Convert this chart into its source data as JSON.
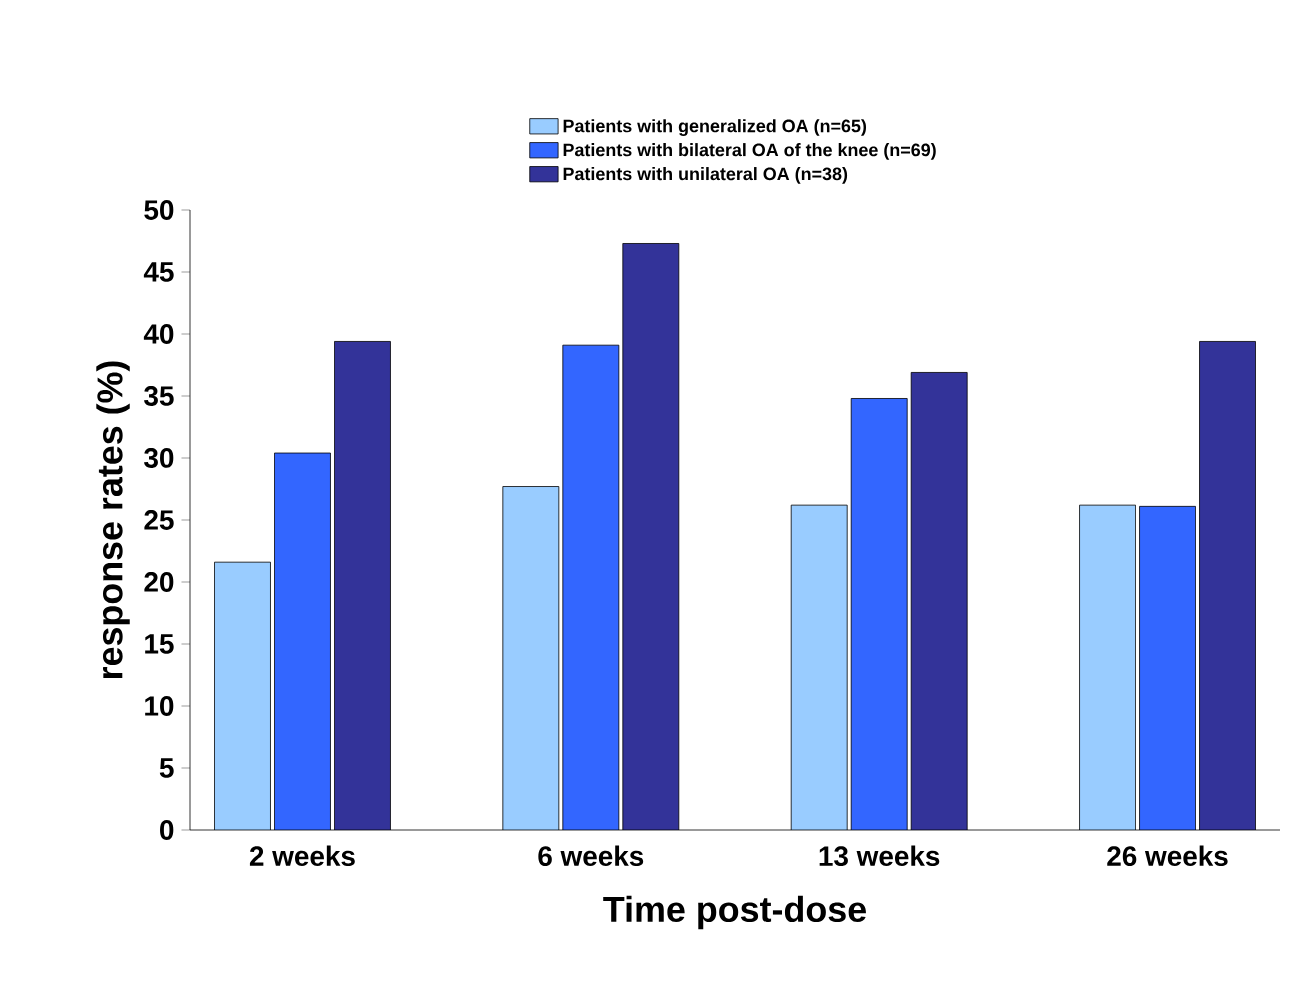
{
  "chart_data": {
    "type": "bar",
    "xlabel": "Time post-dose",
    "ylabel": "response rates (%)",
    "categories": [
      "2 weeks",
      "6 weeks",
      "13 weeks",
      "26 weeks"
    ],
    "series": [
      {
        "name": "Patients with generalized OA (n=65)",
        "color": "#99ccff",
        "values": [
          21.6,
          27.7,
          26.2,
          26.2
        ]
      },
      {
        "name": "Patients with bilateral OA of the knee (n=69)",
        "color": "#3366ff",
        "values": [
          30.4,
          39.1,
          34.8,
          26.1
        ]
      },
      {
        "name": "Patients with unilateral OA (n=38)",
        "color": "#333399",
        "values": [
          39.4,
          47.3,
          36.9,
          39.4
        ]
      }
    ],
    "ylim": [
      0,
      50
    ],
    "yticks": [
      0,
      5,
      10,
      15,
      20,
      25,
      30,
      35,
      40,
      45,
      50
    ],
    "grid": false,
    "legend": "top"
  }
}
